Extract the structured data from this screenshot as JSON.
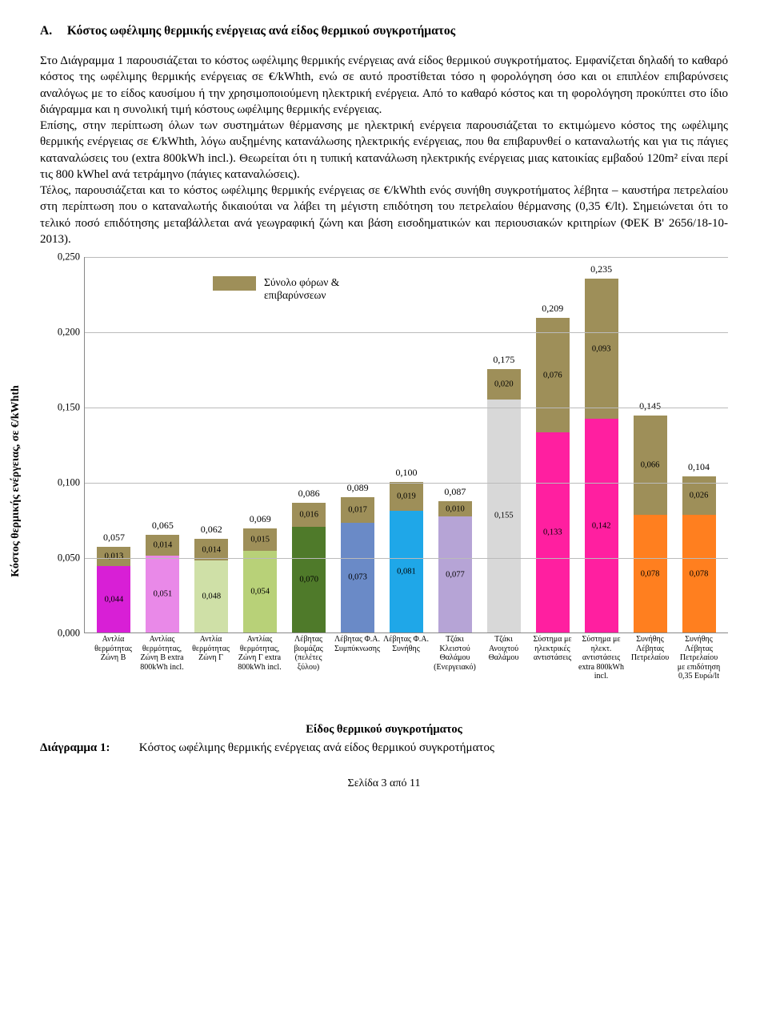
{
  "section": {
    "letter": "A.",
    "title": "Κόστος ωφέλιμης θερμικής ενέργειας ανά είδος θερμικού συγκροτήματος"
  },
  "paragraphs": [
    "Στο Διάγραμμα 1 παρουσιάζεται το κόστος ωφέλιμης θερμικής ενέργειας ανά είδος θερμικού συγκροτήματος. Εμφανίζεται δηλαδή το καθαρό κόστος της ωφέλιμης θερμικής ενέργειας σε €/kWhth, ενώ σε αυτό προστίθεται τόσο η φορολόγηση όσο και οι επιπλέον επιβαρύνσεις αναλόγως με το είδος καυσίμου ή την χρησιμοποιούμενη ηλεκτρική ενέργεια. Από το καθαρό κόστος και τη φορολόγηση προκύπτει στο ίδιο διάγραμμα και η συνολική τιμή κόστους ωφέλιμης θερμικής ενέργειας.",
    "Επίσης, στην περίπτωση όλων των συστημάτων θέρμανσης με ηλεκτρική ενέργεια παρουσιάζεται το εκτιμώμενο κόστος της ωφέλιμης θερμικής ενέργειας σε €/kWhth, λόγω αυξημένης κατανάλωσης ηλεκτρικής ενέργειας, που θα επιβαρυνθεί ο καταναλωτής και για τις πάγιες καταναλώσεις του (extra 800kWh incl.). Θεωρείται ότι η τυπική κατανάλωση ηλεκτρικής ενέργειας μιας κατοικίας εμβαδού 120m² είναι περί τις 800 kWhel ανά τετράμηνο (πάγιες καταναλώσεις).",
    "Τέλος, παρουσιάζεται και το κόστος ωφέλιμης θερμικής ενέργειας σε €/kWhth ενός συνήθη συγκροτήματος λέβητα – καυστήρα πετρελαίου στη περίπτωση που ο καταναλωτής δικαιούται να λάβει τη μέγιστη επιδότηση του πετρελαίου θέρμανσης (0,35 €/lt). Σημειώνεται ότι το τελικό ποσό επιδότησης μεταβάλλεται ανά γεωγραφική ζώνη και βάση εισοδηματικών και περιουσιακών κριτηρίων (ΦΕΚ Β' 2656/18-10-2013)."
  ],
  "chart": {
    "type": "stacked-bar",
    "ylabel": "Κόστος θερμικής ενέργειας, σε €/kWhth",
    "xlabel": "Είδος θερμικού συγκροτήματος",
    "legend_label": "Σύνολο φόρων &\nεπιβαρύνσεων",
    "legend_color": "#9e8f59",
    "ylim_max": 0.25,
    "ytick_step": 0.05,
    "yticks": [
      "0,000",
      "0,050",
      "0,100",
      "0,150",
      "0,200",
      "0,250"
    ],
    "background": "#ffffff",
    "grid_color": "#bbbbbb",
    "bars": [
      {
        "cat": "Αντλία\nθερμότητας\nΖώνη Β",
        "total": "0,057",
        "segs": [
          {
            "v": 0.044,
            "l": "0,044",
            "c": "#d81fd6"
          },
          {
            "v": 0.013,
            "l": "0,013",
            "c": "#9e8f59"
          }
        ]
      },
      {
        "cat": "Αντλίας\nθερμότητας,\nΖώνη Β extra\n800kWh incl.",
        "total": "0,065",
        "segs": [
          {
            "v": 0.051,
            "l": "0,051",
            "c": "#e989e8"
          },
          {
            "v": 0.014,
            "l": "0,014",
            "c": "#9e8f59"
          }
        ]
      },
      {
        "cat": "Αντλία\nθερμότητας\nΖώνη Γ",
        "total": "0,062",
        "segs": [
          {
            "v": 0.048,
            "l": "0,048",
            "c": "#cfe0a7"
          },
          {
            "v": 0.014,
            "l": "0,014",
            "c": "#9e8f59"
          }
        ]
      },
      {
        "cat": "Αντλίας\nθερμότητας,\nΖώνη Γ extra\n800kWh incl.",
        "total": "0,069",
        "segs": [
          {
            "v": 0.054,
            "l": "0,054",
            "c": "#b8d178"
          },
          {
            "v": 0.015,
            "l": "0,015",
            "c": "#9e8f59"
          }
        ]
      },
      {
        "cat": "Λέβητας\nβιομάζας\n(πελέτες\nξύλου)",
        "total": "0,086",
        "segs": [
          {
            "v": 0.07,
            "l": "0,070",
            "c": "#4f7a2a"
          },
          {
            "v": 0.016,
            "l": "0,016",
            "c": "#9e8f59"
          }
        ]
      },
      {
        "cat": "Λέβητας Φ.Α.\nΣυμπύκνωσης",
        "total": "0,089",
        "segs": [
          {
            "v": 0.073,
            "l": "0,073",
            "c": "#6a8ac7"
          },
          {
            "v": 0.017,
            "l": "0,017",
            "c": "#9e8f59"
          }
        ]
      },
      {
        "cat": "Λέβητας Φ.Α.\nΣυνήθης",
        "total": "0,100",
        "segs": [
          {
            "v": 0.081,
            "l": "0,081",
            "c": "#1fa7e8"
          },
          {
            "v": 0.019,
            "l": "0,019",
            "c": "#9e8f59"
          }
        ]
      },
      {
        "cat": "Τζάκι\nΚλειστού\nΘαλάμου\n(Ενεργειακό)",
        "total": "0,087",
        "segs": [
          {
            "v": 0.077,
            "l": "0,077",
            "c": "#b6a4d6"
          },
          {
            "v": 0.01,
            "l": "0,010",
            "c": "#9e8f59"
          }
        ]
      },
      {
        "cat": "Τζάκι\nΑνοιχτού\nΘαλάμου",
        "total": "0,175",
        "segs": [
          {
            "v": 0.155,
            "l": "0,155",
            "c": "#d8d8d8"
          },
          {
            "v": 0.02,
            "l": "0,020",
            "c": "#9e8f59"
          }
        ]
      },
      {
        "cat": "Σύστημα με\nηλεκτρικές\nαντιστάσεις",
        "total": "0,209",
        "segs": [
          {
            "v": 0.133,
            "l": "0,133",
            "c": "#ff1fa0"
          },
          {
            "v": 0.076,
            "l": "0,076",
            "c": "#9e8f59"
          }
        ]
      },
      {
        "cat": "Σύστημα με\nηλεκτ.\nαντιστάσεις\nextra 800kWh\nincl.",
        "total": "0,235",
        "segs": [
          {
            "v": 0.142,
            "l": "0,142",
            "c": "#ff1fa0"
          },
          {
            "v": 0.093,
            "l": "0,093",
            "c": "#9e8f59"
          }
        ]
      },
      {
        "cat": "Συνήθης\nΛέβητας\nΠετρελαίου",
        "total": "0,145",
        "segs": [
          {
            "v": 0.078,
            "l": "0,078",
            "c": "#ff7f1f"
          },
          {
            "v": 0.066,
            "l": "0,066",
            "c": "#9e8f59"
          }
        ]
      },
      {
        "cat": "Συνήθης\nΛέβητας\nΠετρελαίου\nμε επιδότηση\n0,35 Ευρώ/lt",
        "total": "0,104",
        "segs": [
          {
            "v": 0.078,
            "l": "0,078",
            "c": "#ff7f1f"
          },
          {
            "v": 0.026,
            "l": "0,026",
            "c": "#9e8f59"
          }
        ]
      }
    ]
  },
  "caption": {
    "label": "Διάγραμμα 1:",
    "text": "Κόστος ωφέλιμης θερμικής ενέργειας ανά είδος θερμικού συγκροτήματος"
  },
  "footer": "Σελίδα 3 από 11"
}
